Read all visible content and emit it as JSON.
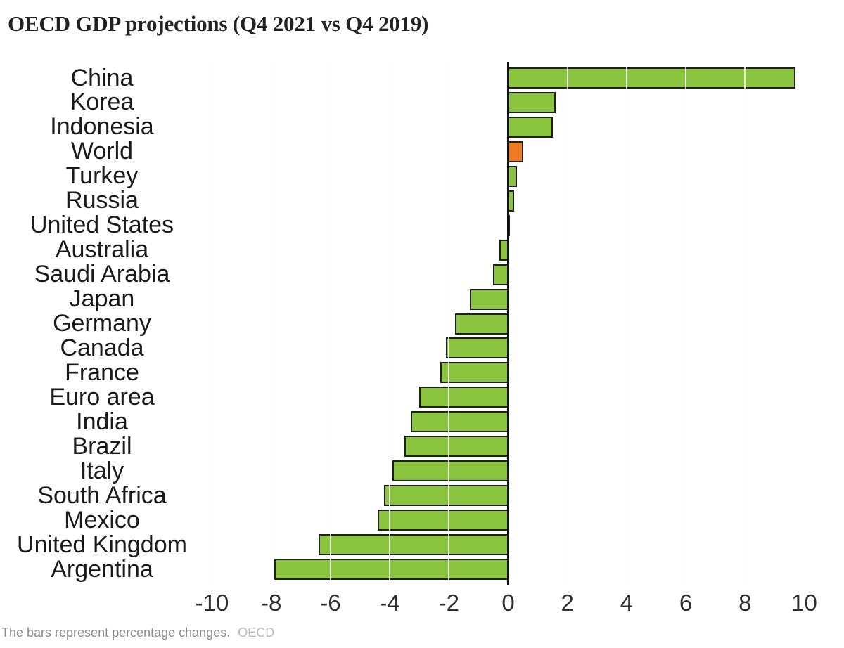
{
  "chart_data": {
    "type": "bar",
    "orientation": "horizontal",
    "title": "OECD GDP projections (Q4 2021 vs Q4 2019)",
    "xlabel": "",
    "ylabel": "",
    "unit": "percentage change",
    "categories": [
      "China",
      "Korea",
      "Indonesia",
      "World",
      "Turkey",
      "Russia",
      "United States",
      "Australia",
      "Saudi Arabia",
      "Japan",
      "Germany",
      "Canada",
      "France",
      "Euro area",
      "India",
      "Brazil",
      "Italy",
      "South Africa",
      "Mexico",
      "United Kingdom",
      "Argentina"
    ],
    "values": [
      9.7,
      1.6,
      1.5,
      0.5,
      0.3,
      0.2,
      0.0,
      -0.3,
      -0.5,
      -1.3,
      -1.8,
      -2.1,
      -2.3,
      -3.0,
      -3.3,
      -3.5,
      -3.9,
      -4.2,
      -4.4,
      -6.4,
      -7.9
    ],
    "x_ticks": [
      -10,
      -8,
      -6,
      -4,
      -2,
      0,
      2,
      4,
      6,
      8,
      10
    ],
    "xlim": [
      -10.5,
      10.5
    ],
    "highlight_category": "World",
    "grid": "vertical gridlines at even values, drawn light over bars",
    "legend": "none",
    "colors": {
      "bar": "#8bc53f",
      "highlight": "#ee7d23",
      "outline": "#1f1f1f",
      "zero_axis": "#111111",
      "title_text": "#222222",
      "label_text": "#1a1a1a",
      "tick_text": "#2e2e2e"
    },
    "footnote": "The bars represent percentage changes.",
    "source": "OECD"
  }
}
